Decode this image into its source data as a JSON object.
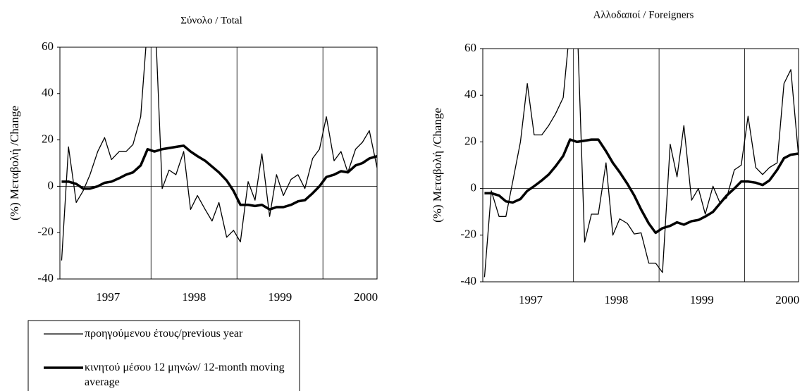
{
  "chart_data": [
    {
      "type": "line",
      "title": "Σύνολο / Total",
      "ylabel": "(%) Μεταβολή /Change",
      "x": [
        1996.96,
        1997.04,
        1997.13,
        1997.21,
        1997.29,
        1997.38,
        1997.46,
        1997.54,
        1997.63,
        1997.71,
        1997.79,
        1997.88,
        1997.96,
        1998.04,
        1998.13,
        1998.21,
        1998.29,
        1998.38,
        1998.46,
        1998.54,
        1998.63,
        1998.71,
        1998.79,
        1998.88,
        1998.96,
        1999.04,
        1999.13,
        1999.21,
        1999.29,
        1999.38,
        1999.46,
        1999.54,
        1999.63,
        1999.71,
        1999.79,
        1999.88,
        1999.96,
        2000.04,
        2000.13,
        2000.21,
        2000.29,
        2000.38,
        2000.46,
        2000.54,
        2000.63
      ],
      "series": [
        {
          "name": "προηγούμενου έτους/previous year",
          "color": "#000000",
          "linewidth": 1.3,
          "values": [
            -32,
            17,
            -7,
            -2,
            5,
            15,
            21,
            11.5,
            15,
            15,
            18,
            30,
            70,
            80,
            -1,
            7,
            5,
            15,
            -10,
            -4,
            -10,
            -15,
            -7,
            -22,
            -19,
            -24,
            2,
            -6,
            14,
            -13,
            5,
            -4,
            3,
            5,
            -1,
            12,
            16,
            30,
            11,
            15,
            6,
            16,
            19,
            24,
            8
          ]
        },
        {
          "name": "κινητού μέσου 12 μηνών/ 12-month moving average",
          "color": "#000000",
          "linewidth": 3.5,
          "values": [
            2,
            2,
            1,
            -1,
            -1,
            0,
            1.5,
            2,
            3.5,
            5,
            6,
            9,
            16,
            15,
            16,
            16.5,
            17,
            17.5,
            15,
            13,
            11,
            8.5,
            6,
            2.5,
            -2,
            -8,
            -8,
            -8.5,
            -8,
            -10,
            -9,
            -9,
            -8,
            -6.5,
            -6,
            -3,
            0,
            4,
            5,
            6.5,
            6,
            9,
            10,
            12,
            13
          ]
        }
      ],
      "xlim": [
        1996.94,
        2000.63
      ],
      "xticks": [
        {
          "value": 1997.5,
          "label": "1997"
        },
        {
          "value": 1998.5,
          "label": "1998"
        },
        {
          "value": 1999.5,
          "label": "1999"
        },
        {
          "value": 2000.5,
          "label": "2000"
        }
      ],
      "xgrid": [
        1998,
        1999,
        2000
      ],
      "ylim": [
        -40,
        60
      ],
      "yticks": [
        -40,
        -20,
        0,
        20,
        40,
        60
      ],
      "legend": "below"
    },
    {
      "type": "line",
      "title": "Αλλοδαποί / Foreigners",
      "ylabel": "(%) Μεταβολή /Change",
      "x": [
        1996.96,
        1997.04,
        1997.13,
        1997.21,
        1997.29,
        1997.38,
        1997.46,
        1997.54,
        1997.63,
        1997.71,
        1997.79,
        1997.88,
        1997.96,
        1998.04,
        1998.13,
        1998.21,
        1998.29,
        1998.38,
        1998.46,
        1998.54,
        1998.63,
        1998.71,
        1998.79,
        1998.88,
        1998.96,
        1999.04,
        1999.13,
        1999.21,
        1999.29,
        1999.38,
        1999.46,
        1999.54,
        1999.63,
        1999.71,
        1999.79,
        1999.88,
        1999.96,
        2000.04,
        2000.13,
        2000.21,
        2000.29,
        2000.38,
        2000.46,
        2000.54,
        2000.63
      ],
      "series": [
        {
          "color": "#000000",
          "linewidth": 1.3,
          "values": [
            -38,
            -1,
            -12,
            -12,
            3,
            20,
            45,
            23,
            23,
            27,
            32,
            39,
            70,
            75,
            -23,
            -11,
            -11,
            11,
            -20,
            -13,
            -15,
            -19.5,
            -19,
            -32,
            -32,
            -36,
            19,
            5,
            27,
            -5,
            0,
            -11,
            1,
            -6,
            -4,
            8,
            10,
            31,
            9,
            6,
            9,
            11,
            45,
            51,
            14
          ]
        },
        {
          "color": "#000000",
          "linewidth": 3.5,
          "values": [
            -2,
            -2,
            -3,
            -5.5,
            -6,
            -4.5,
            -1,
            1,
            3.5,
            6,
            9.5,
            14,
            21,
            20,
            20.5,
            21,
            21,
            16,
            11,
            7,
            2,
            -3,
            -9,
            -15,
            -19,
            -17,
            -16,
            -14.5,
            -15.5,
            -14,
            -13.5,
            -12,
            -10,
            -6.5,
            -3,
            0,
            3,
            3,
            2.5,
            1.5,
            3.5,
            8,
            13,
            14.5,
            15
          ]
        }
      ],
      "xlim": [
        1996.94,
        2000.63
      ],
      "xticks": [
        {
          "value": 1997.5,
          "label": "1997"
        },
        {
          "value": 1998.5,
          "label": "1998"
        },
        {
          "value": 1999.5,
          "label": "1999"
        },
        {
          "value": 2000.5,
          "label": "2000"
        }
      ],
      "xgrid": [
        1998,
        1999,
        2000
      ],
      "ylim": [
        -40,
        60
      ],
      "yticks": [
        -40,
        -20,
        0,
        20,
        40,
        60
      ]
    }
  ]
}
